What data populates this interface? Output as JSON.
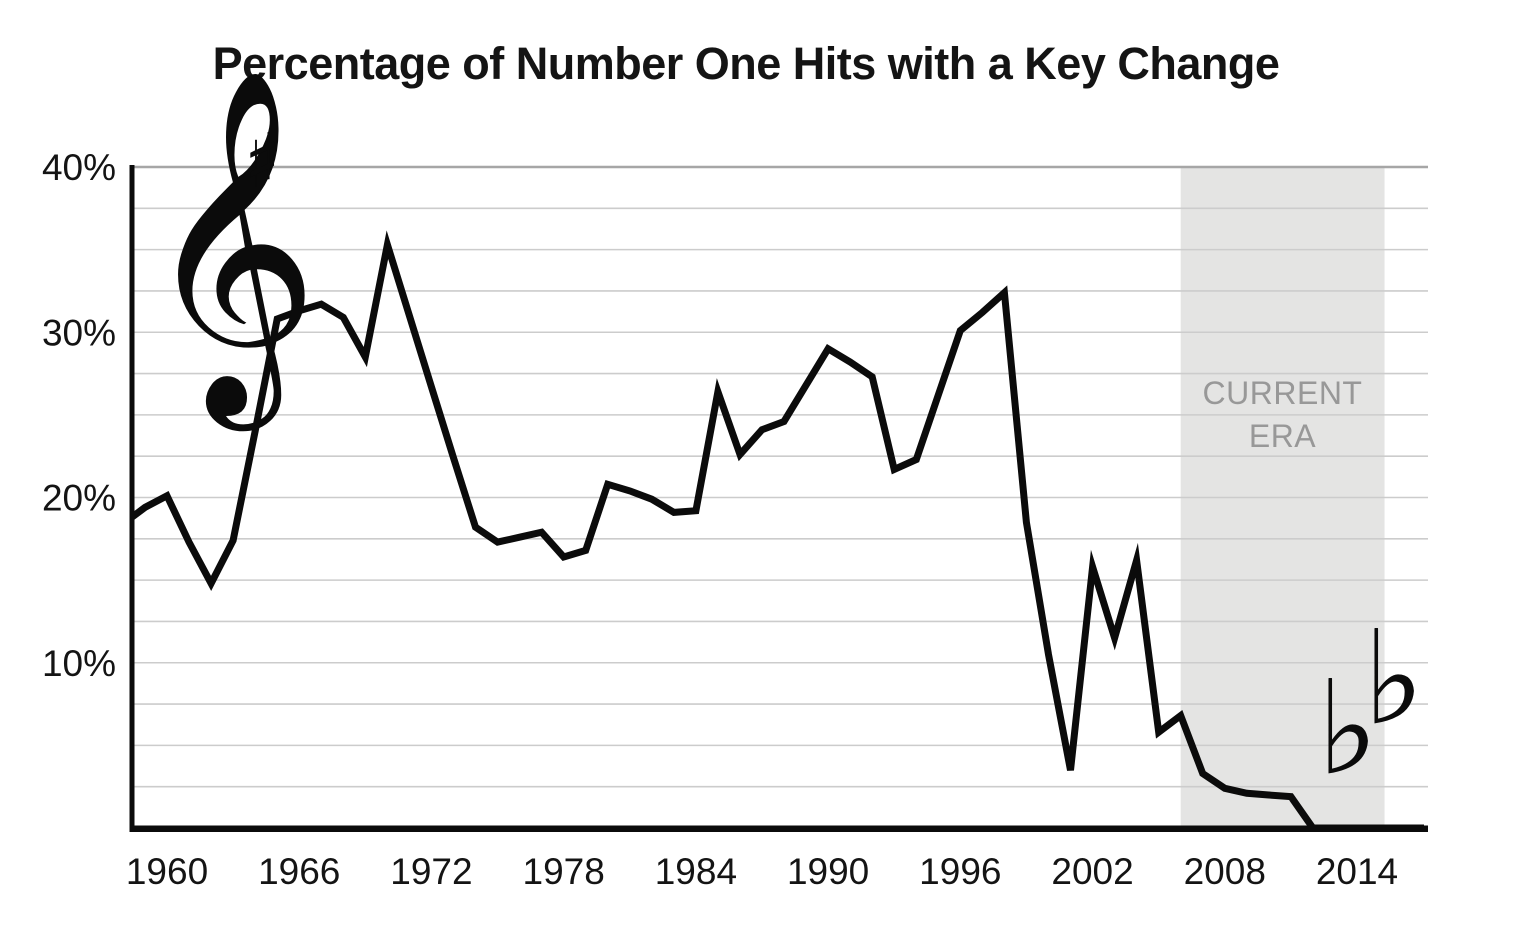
{
  "chart_data": {
    "type": "line",
    "title": "Percentage of Number One Hits with a Key Change",
    "xlabel": "",
    "ylabel": "",
    "x": [
      1958,
      1959,
      1960,
      1961,
      1962,
      1963,
      1964,
      1965,
      1966,
      1967,
      1968,
      1969,
      1970,
      1971,
      1972,
      1973,
      1974,
      1975,
      1976,
      1977,
      1978,
      1979,
      1980,
      1981,
      1982,
      1983,
      1984,
      1985,
      1986,
      1987,
      1988,
      1989,
      1990,
      1991,
      1992,
      1993,
      1994,
      1995,
      1996,
      1997,
      1998,
      1999,
      2000,
      2001,
      2002,
      2003,
      2004,
      2005,
      2006,
      2007,
      2008,
      2009,
      2010,
      2011,
      2012,
      2013,
      2014,
      2015,
      2016
    ],
    "values": [
      18.4,
      19.4,
      20.1,
      17.3,
      14.8,
      17.4,
      24.0,
      30.8,
      31.3,
      31.7,
      30.9,
      28.5,
      35.3,
      31.0,
      26.7,
      22.4,
      18.2,
      17.3,
      17.6,
      17.9,
      16.4,
      16.8,
      20.8,
      20.4,
      19.9,
      19.1,
      19.2,
      26.4,
      22.6,
      24.1,
      24.6,
      26.8,
      29.0,
      28.2,
      27.3,
      21.7,
      22.3,
      26.2,
      30.1,
      31.2,
      32.4,
      18.5,
      10.5,
      3.5,
      15.8,
      11.5,
      16.2,
      5.8,
      6.8,
      3.3,
      2.4,
      2.1,
      2.0,
      1.9,
      0,
      0,
      0,
      0,
      0
    ],
    "ylim": [
      0,
      40
    ],
    "grid": true,
    "grid_interval": 2.5,
    "x_tick_labels": [
      "1960",
      "1966",
      "1972",
      "1978",
      "1984",
      "1990",
      "1996",
      "2002",
      "2008",
      "2014"
    ],
    "y_ticks": [
      {
        "label": "40%",
        "value": 40
      },
      {
        "label": "30%",
        "value": 30
      },
      {
        "label": "20%",
        "value": 20
      },
      {
        "label": "10%",
        "value": 10
      }
    ],
    "annotation_band": {
      "label_line1": "CURRENT",
      "label_line2": "ERA",
      "start_year": 2006,
      "end_year": 2015.25
    }
  },
  "decorations": {
    "treble_clef": "𝄞",
    "sharp": "♯",
    "flat_left": "♭",
    "flat_right": "♭"
  },
  "colors": {
    "line": "#0b0b0b",
    "grid": "#cccccc",
    "grid_top": "#a6a6a6",
    "band": "#e4e4e3",
    "era_text": "#989898",
    "axis": "#0b0b0b",
    "text": "#141414",
    "background": "#ffffff"
  }
}
